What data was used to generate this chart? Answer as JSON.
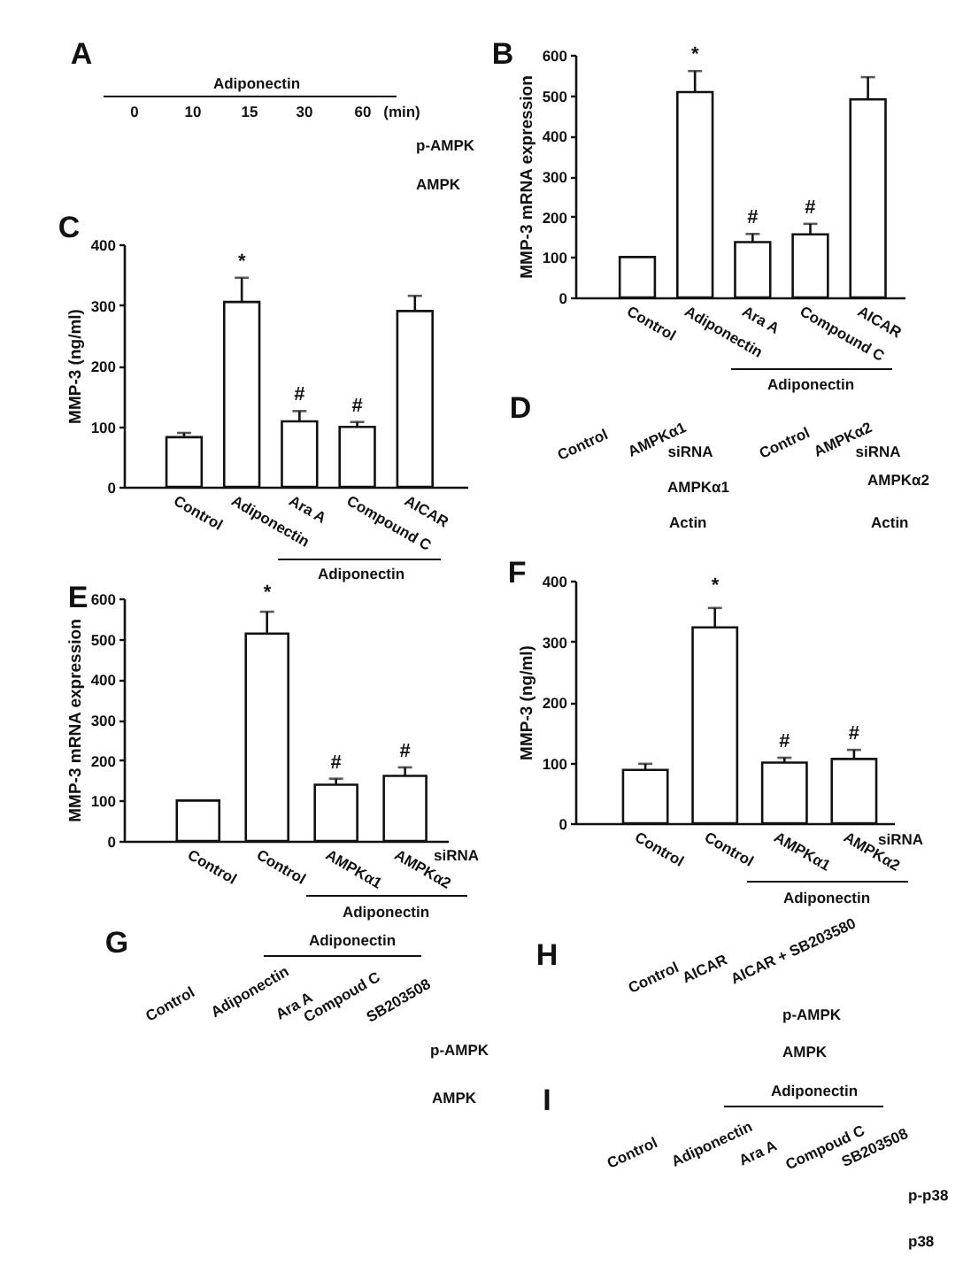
{
  "chart_data": [
    {
      "type": "other",
      "title": "A",
      "annotations": [
        "Adiponectin",
        "0",
        "10",
        "15",
        "30",
        "60",
        "(min)",
        "p-AMPK",
        "AMPK"
      ]
    },
    {
      "type": "bar",
      "title": "B",
      "ylabel": "MMP-3 mRNA expression",
      "categories": [
        "Control",
        "Adiponectin",
        "Ara A",
        "Compound C",
        "AICAR"
      ],
      "values": [
        100,
        508,
        137,
        156,
        490
      ],
      "errors": [
        null,
        [
          508,
          560
        ],
        [
          137,
          157
        ],
        [
          156,
          182
        ],
        [
          490,
          545
        ]
      ],
      "color": "#ffffff",
      "ylim": [
        0,
        600
      ],
      "yticks": [
        0,
        100,
        200,
        300,
        400,
        500,
        600
      ],
      "annotations": [
        {
          "text": "*",
          "x": "Adiponectin",
          "y": 560
        },
        {
          "text": "#",
          "x": "Ara A",
          "y": 157
        },
        {
          "text": "#",
          "x": "Compound C",
          "y": 182
        },
        "Adiponectin"
      ]
    },
    {
      "type": "bar",
      "title": "C",
      "ylabel": "MMP-3 (ng/ml)",
      "categories": [
        "Control",
        "Adiponectin",
        "Ara A",
        "Compound C",
        "AICAR"
      ],
      "values": [
        82,
        305,
        108,
        99,
        290
      ],
      "errors": [
        [
          82,
          89
        ],
        [
          305,
          345
        ],
        [
          108,
          125
        ],
        [
          99,
          107
        ],
        [
          290,
          315
        ]
      ],
      "color": "#ffffff",
      "ylim": [
        0,
        400
      ],
      "yticks": [
        0,
        100,
        200,
        300,
        400
      ],
      "annotations": [
        {
          "text": "*",
          "x": "Adiponectin",
          "y": 345
        },
        {
          "text": "#",
          "x": "Ara A",
          "y": 125
        },
        {
          "text": "#",
          "x": "Compound C",
          "y": 107
        },
        "Adiponectin"
      ]
    },
    {
      "type": "other",
      "title": "D",
      "annotations": [
        "Control",
        "AMPKα1",
        "siRNA",
        "AMPKα1",
        "Actin",
        "Control",
        "AMPKα2",
        "siRNA",
        "AMPKα2",
        "Actin"
      ]
    },
    {
      "type": "bar",
      "title": "E",
      "ylabel": "MMP-3 mRNA expression",
      "categories": [
        "Control",
        "Control",
        "AMPKα1",
        "AMPKα2"
      ],
      "values": [
        100,
        513,
        139,
        161
      ],
      "errors": [
        null,
        [
          513,
          567
        ],
        [
          139,
          154
        ],
        [
          161,
          182
        ]
      ],
      "color": "#ffffff",
      "ylim": [
        0,
        600
      ],
      "yticks": [
        0,
        100,
        200,
        300,
        400,
        500,
        600
      ],
      "annotations": [
        "*",
        {
          "text": "#",
          "x": "AMPKα1",
          "y": 154
        },
        {
          "text": "#",
          "x": "AMPKα2",
          "y": 182
        },
        "siRNA",
        "Adiponectin"
      ]
    },
    {
      "type": "bar",
      "title": "F",
      "ylabel": "MMP-3 (ng/ml)",
      "categories": [
        "Control",
        "Control",
        "AMPKα1",
        "AMPKα2"
      ],
      "values": [
        88,
        323,
        100,
        106
      ],
      "errors": [
        [
          88,
          98
        ],
        [
          323,
          355
        ],
        [
          100,
          108
        ],
        [
          106,
          121
        ]
      ],
      "color": "#ffffff",
      "ylim": [
        0,
        400
      ],
      "yticks": [
        0,
        100,
        200,
        300,
        400
      ],
      "annotations": [
        "*",
        {
          "text": "#",
          "x": "AMPKα1",
          "y": 108
        },
        {
          "text": "#",
          "x": "AMPKα2",
          "y": 121
        },
        "siRNA",
        "Adiponectin"
      ]
    },
    {
      "type": "other",
      "title": "G",
      "annotations": [
        "Adiponectin",
        "Control",
        "Adiponectin",
        "Ara A",
        "Compoud C",
        "SB203508",
        "p-AMPK",
        "AMPK"
      ]
    },
    {
      "type": "other",
      "title": "H",
      "annotations": [
        "Control",
        "AICAR",
        "AICAR + SB203580",
        "p-AMPK",
        "AMPK"
      ]
    },
    {
      "type": "other",
      "title": "I",
      "annotations": [
        "Adiponectin",
        "Control",
        "Adiponectin",
        "Ara A",
        "Compoud C",
        "SB203508",
        "p-p38",
        "p38"
      ]
    }
  ]
}
